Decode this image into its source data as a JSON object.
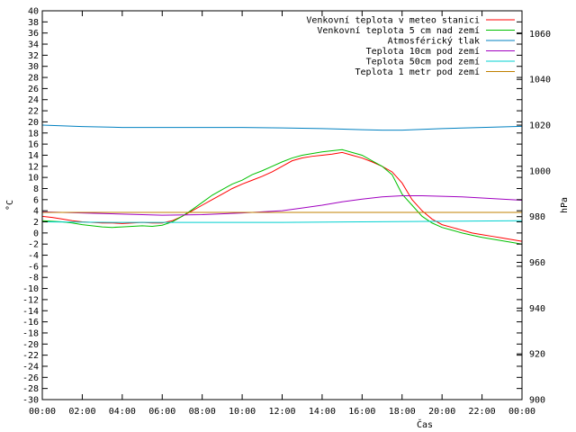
{
  "chart_data": {
    "type": "line",
    "xlabel": "Čas",
    "ylabel": "°C",
    "y2label": "hPa",
    "ylim": [
      -30,
      40
    ],
    "y2lim": [
      900,
      1070
    ],
    "x_ticks": [
      "00:00",
      "02:00",
      "04:00",
      "06:00",
      "08:00",
      "10:00",
      "12:00",
      "14:00",
      "16:00",
      "18:00",
      "20:00",
      "22:00",
      "00:00"
    ],
    "y_ticks": [
      -30,
      -28,
      -26,
      -24,
      -22,
      -20,
      -18,
      -16,
      -14,
      -12,
      -10,
      -8,
      -6,
      -4,
      -2,
      0,
      2,
      4,
      6,
      8,
      10,
      12,
      14,
      16,
      18,
      20,
      22,
      24,
      26,
      28,
      30,
      32,
      34,
      36,
      38,
      40
    ],
    "y2_ticks": [
      900,
      920,
      940,
      960,
      980,
      1000,
      1020,
      1040,
      1060
    ],
    "xlim_hours": [
      0,
      24
    ],
    "legend_position": "top-right",
    "grid": false,
    "series": [
      {
        "name": "Venkovní teplota v meteo stanici",
        "color": "#ff0000",
        "axis": "left",
        "x": [
          0,
          0.5,
          1,
          1.5,
          2,
          2.5,
          3,
          3.5,
          4,
          4.5,
          5,
          5.5,
          6,
          6.5,
          7,
          7.5,
          8,
          8.5,
          9,
          9.5,
          10,
          10.5,
          11,
          11.5,
          12,
          12.5,
          13,
          13.5,
          14,
          14.5,
          15,
          15.5,
          16,
          16.5,
          17,
          17.5,
          18,
          18.5,
          19,
          19.5,
          20,
          20.5,
          21,
          21.5,
          22,
          22.5,
          23,
          23.5,
          24
        ],
        "y": [
          3.0,
          2.8,
          2.5,
          2.2,
          2.0,
          1.9,
          1.8,
          1.8,
          1.7,
          1.8,
          1.9,
          1.8,
          1.8,
          2.2,
          3.0,
          4.0,
          5.0,
          6.0,
          7.0,
          8.0,
          8.8,
          9.5,
          10.2,
          11.0,
          12.0,
          13.0,
          13.5,
          13.8,
          14.0,
          14.2,
          14.5,
          14.0,
          13.5,
          12.8,
          12.0,
          11.0,
          9.0,
          6.0,
          4.0,
          2.5,
          1.5,
          1.0,
          0.5,
          0.0,
          -0.3,
          -0.6,
          -0.9,
          -1.2,
          -1.5
        ]
      },
      {
        "name": "Venkovní teplota 5 cm nad zemí",
        "color": "#00c000",
        "axis": "left",
        "x": [
          0,
          0.5,
          1,
          1.5,
          2,
          2.5,
          3,
          3.5,
          4,
          4.5,
          5,
          5.5,
          6,
          6.5,
          7,
          7.5,
          8,
          8.5,
          9,
          9.5,
          10,
          10.5,
          11,
          11.5,
          12,
          12.5,
          13,
          13.5,
          14,
          14.5,
          15,
          15.5,
          16,
          16.5,
          17,
          17.5,
          18,
          18.5,
          19,
          19.5,
          20,
          20.5,
          21,
          21.5,
          22,
          22.5,
          23,
          23.5,
          24
        ],
        "y": [
          2.2,
          2.1,
          2.0,
          1.8,
          1.5,
          1.3,
          1.1,
          1.0,
          1.1,
          1.2,
          1.3,
          1.2,
          1.4,
          2.0,
          3.0,
          4.2,
          5.5,
          6.8,
          7.8,
          8.8,
          9.5,
          10.5,
          11.2,
          12.0,
          12.8,
          13.5,
          14.0,
          14.3,
          14.6,
          14.8,
          15.0,
          14.5,
          14.0,
          13.0,
          12.0,
          10.5,
          7.0,
          5.0,
          3.0,
          1.8,
          1.0,
          0.5,
          0.0,
          -0.4,
          -0.8,
          -1.1,
          -1.4,
          -1.7,
          -2.0
        ]
      },
      {
        "name": "Atmosférický tlak",
        "color": "#0080c0",
        "axis": "right",
        "x": [
          0,
          2,
          4,
          6,
          8,
          10,
          12,
          14,
          16,
          17,
          18,
          20,
          22,
          24
        ],
        "y": [
          1020,
          1019.4,
          1019,
          1019,
          1019,
          1019,
          1018.8,
          1018.5,
          1018,
          1017.8,
          1017.8,
          1018.5,
          1019,
          1019.5
        ]
      },
      {
        "name": "Teplota 10cm pod zemí",
        "color": "#a000c0",
        "axis": "left",
        "x": [
          0,
          2,
          4,
          6,
          8,
          10,
          11,
          12,
          13,
          14,
          15,
          16,
          17,
          18,
          19,
          20,
          21,
          22,
          23,
          24
        ],
        "y": [
          3.8,
          3.6,
          3.4,
          3.2,
          3.3,
          3.6,
          3.8,
          4.0,
          4.5,
          5.0,
          5.6,
          6.1,
          6.5,
          6.7,
          6.7,
          6.6,
          6.5,
          6.3,
          6.1,
          5.9
        ]
      },
      {
        "name": "Teplota 50cm pod zemí",
        "color": "#00d0d0",
        "axis": "left",
        "x": [
          0,
          4,
          8,
          12,
          16,
          20,
          24
        ],
        "y": [
          2.0,
          1.9,
          1.9,
          1.9,
          2.0,
          2.1,
          2.2
        ]
      },
      {
        "name": "Teplota 1 metr pod zemí",
        "color": "#c08000",
        "axis": "left",
        "x": [
          0,
          24
        ],
        "y": [
          3.7,
          3.7
        ]
      }
    ]
  }
}
